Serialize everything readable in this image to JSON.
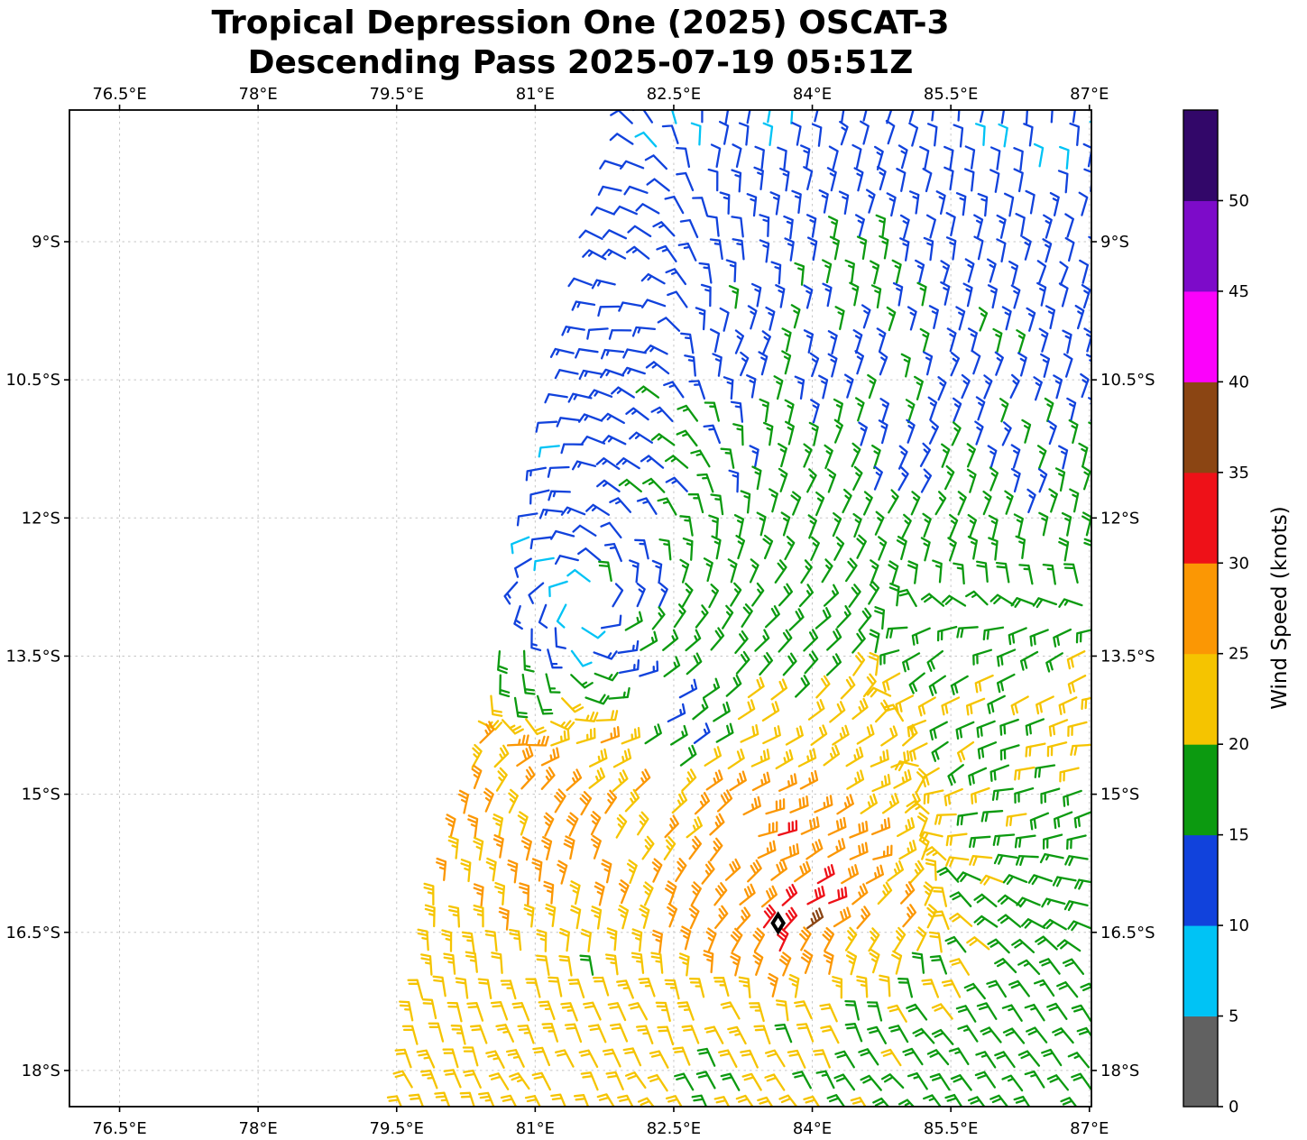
{
  "title": {
    "line1": "Tropical Depression One (2025) OSCAT-3",
    "line2": "Descending Pass 2025-07-19 05:51Z"
  },
  "axes": {
    "x": {
      "tick_values": [
        76.5,
        78,
        79.5,
        81,
        82.5,
        84,
        85.5,
        87
      ],
      "tick_labels": [
        "76.5°E",
        "78°E",
        "79.5°E",
        "81°E",
        "82.5°E",
        "84°E",
        "85.5°E",
        "87°E"
      ],
      "range_lon": [
        75.96,
        87.04
      ]
    },
    "y": {
      "tick_values": [
        9,
        10.5,
        12,
        13.5,
        15,
        16.5,
        18
      ],
      "tick_labels": [
        "9°S",
        "10.5°S",
        "12°S",
        "13.5°S",
        "15°S",
        "16.5°S",
        "18°S"
      ],
      "range_lat_south": [
        7.57,
        18.39
      ]
    }
  },
  "colorbar": {
    "label": "Wind Speed (knots)",
    "tick_values": [
      0,
      5,
      10,
      15,
      20,
      25,
      30,
      35,
      40,
      45,
      50
    ],
    "tick_labels": [
      "0",
      "5",
      "10",
      "15",
      "20",
      "25",
      "30",
      "35",
      "40",
      "45",
      "50"
    ],
    "levels": [
      0,
      5,
      10,
      15,
      20,
      25,
      30,
      35,
      40,
      45,
      50,
      55
    ],
    "colors": [
      "#616161",
      "#00c3f5",
      "#1142dc",
      "#0c9a10",
      "#f5c400",
      "#fb9704",
      "#ee1118",
      "#8b4513",
      "#fb02fb",
      "#7d0bc9",
      "#320769"
    ]
  },
  "chart_data": {
    "type": "wind_barbs",
    "units": "knots",
    "lat_convention": "degrees_south",
    "grid_spacing_deg": 0.25,
    "storm_marker": {
      "lon": 83.63,
      "lat": 16.4
    },
    "vortex_center": {
      "lon": 81.52,
      "lat": 12.93
    },
    "swath_right_boundary_lon": 87.12,
    "swath_left_boundary": [
      [
        7.6,
        82.05
      ],
      [
        9,
        81.7
      ],
      [
        10.5,
        81.33
      ],
      [
        12,
        80.95
      ],
      [
        13.5,
        80.58
      ],
      [
        15,
        80.2
      ],
      [
        16.5,
        79.83
      ],
      [
        17.6,
        79.65
      ],
      [
        18.45,
        79.5
      ]
    ],
    "holes": [
      [
        82.35,
        12.2,
        0.22
      ],
      [
        82.1,
        14.05,
        0.26
      ],
      [
        82.25,
        14.8,
        0.22
      ],
      [
        83.15,
        15.55,
        0.18
      ],
      [
        81.55,
        12.95,
        0.12
      ]
    ],
    "speed_samples": [
      [
        82.5,
        7.8,
        9
      ],
      [
        83.6,
        7.8,
        9
      ],
      [
        84.9,
        7.8,
        12
      ],
      [
        85.9,
        7.9,
        10
      ],
      [
        86.8,
        7.9,
        9
      ],
      [
        82.3,
        8.6,
        11
      ],
      [
        83.3,
        8.8,
        12
      ],
      [
        84.55,
        9.4,
        16
      ],
      [
        85.5,
        9.0,
        12
      ],
      [
        86.6,
        9.2,
        12
      ],
      [
        81.9,
        9.8,
        11
      ],
      [
        82.9,
        10.2,
        13
      ],
      [
        84.2,
        10.3,
        14
      ],
      [
        85.5,
        10.5,
        13
      ],
      [
        86.7,
        10.6,
        13
      ],
      [
        81.3,
        11.2,
        10
      ],
      [
        82.4,
        11.4,
        14
      ],
      [
        83.6,
        11.7,
        16
      ],
      [
        85.0,
        11.6,
        14
      ],
      [
        86.3,
        11.6,
        14
      ],
      [
        81.0,
        12.15,
        8
      ],
      [
        81.9,
        12.2,
        12
      ],
      [
        83.0,
        12.4,
        16
      ],
      [
        84.3,
        12.5,
        17
      ],
      [
        85.6,
        12.6,
        16
      ],
      [
        86.8,
        12.6,
        17
      ],
      [
        81.55,
        12.95,
        9
      ],
      [
        81.6,
        12.45,
        12
      ],
      [
        82.0,
        12.9,
        16
      ],
      [
        81.82,
        12.75,
        21
      ],
      [
        81.8,
        13.4,
        17
      ],
      [
        81.15,
        12.6,
        10
      ],
      [
        81.4,
        13.4,
        9
      ],
      [
        80.9,
        13.3,
        11
      ],
      [
        80.8,
        13.5,
        21
      ],
      [
        81.0,
        13.9,
        18
      ],
      [
        82.2,
        13.15,
        15
      ],
      [
        82.7,
        13.3,
        17
      ],
      [
        83.8,
        13.3,
        18
      ],
      [
        85.0,
        13.4,
        18
      ],
      [
        86.2,
        13.5,
        19
      ],
      [
        86.9,
        13.9,
        21
      ],
      [
        80.35,
        14.25,
        26
      ],
      [
        81.2,
        14.4,
        25
      ],
      [
        81.75,
        14.5,
        26
      ],
      [
        82.0,
        13.55,
        12
      ],
      [
        82.35,
        14.0,
        12
      ],
      [
        82.6,
        14.4,
        13
      ],
      [
        83.2,
        14.2,
        22
      ],
      [
        84.2,
        14.3,
        23
      ],
      [
        85.2,
        14.3,
        21
      ],
      [
        86.0,
        14.5,
        19
      ],
      [
        86.8,
        14.8,
        21
      ],
      [
        80.1,
        15.1,
        27
      ],
      [
        80.85,
        14.6,
        29
      ],
      [
        81.0,
        15.0,
        27
      ],
      [
        81.35,
        15.35,
        31
      ],
      [
        82.2,
        15.2,
        26
      ],
      [
        83.0,
        15.1,
        28
      ],
      [
        83.6,
        15.35,
        31
      ],
      [
        84.35,
        15.5,
        30
      ],
      [
        85.1,
        15.3,
        23
      ],
      [
        85.9,
        15.3,
        19
      ],
      [
        86.7,
        15.6,
        18
      ],
      [
        79.85,
        16.0,
        26
      ],
      [
        80.8,
        16.0,
        27
      ],
      [
        81.6,
        16.1,
        27
      ],
      [
        82.6,
        16.05,
        28
      ],
      [
        83.3,
        16.0,
        29
      ],
      [
        84.05,
        16.05,
        31
      ],
      [
        84.9,
        16.2,
        26
      ],
      [
        85.8,
        16.2,
        19
      ],
      [
        86.6,
        16.4,
        18
      ],
      [
        79.7,
        16.8,
        24
      ],
      [
        80.7,
        16.9,
        23
      ],
      [
        81.6,
        16.8,
        19
      ],
      [
        82.4,
        16.7,
        25
      ],
      [
        83.3,
        16.72,
        28
      ],
      [
        83.55,
        16.68,
        31
      ],
      [
        83.85,
        16.42,
        36
      ],
      [
        84.5,
        16.7,
        24
      ],
      [
        85.4,
        16.9,
        19
      ],
      [
        86.4,
        17.0,
        17
      ],
      [
        79.6,
        17.6,
        22
      ],
      [
        80.6,
        17.5,
        22
      ],
      [
        81.7,
        17.6,
        21
      ],
      [
        82.8,
        17.5,
        22
      ],
      [
        83.8,
        17.6,
        20
      ],
      [
        84.8,
        17.6,
        18
      ],
      [
        85.8,
        17.8,
        17
      ],
      [
        86.8,
        17.7,
        18
      ],
      [
        79.5,
        18.3,
        21
      ],
      [
        80.6,
        18.2,
        22
      ],
      [
        81.8,
        18.25,
        21
      ],
      [
        83.0,
        18.2,
        19
      ],
      [
        84.1,
        18.2,
        18
      ],
      [
        85.2,
        18.3,
        17
      ],
      [
        86.3,
        18.3,
        18
      ]
    ],
    "flow_samples": [
      [
        81.9,
        8.4,
        1.0,
        -0.25
      ],
      [
        83.2,
        8.0,
        -0.2,
        -1.0
      ],
      [
        84.6,
        8.2,
        -0.3,
        -0.95
      ],
      [
        86.0,
        8.3,
        -0.1,
        -1.0
      ],
      [
        86.9,
        9.5,
        -0.3,
        -0.95
      ],
      [
        82.0,
        10.0,
        1.0,
        0.1
      ],
      [
        83.2,
        10.2,
        -0.45,
        -0.9
      ],
      [
        84.6,
        10.4,
        -0.3,
        -1.0
      ],
      [
        85.8,
        10.8,
        -0.4,
        -0.9
      ],
      [
        81.2,
        11.5,
        0.75,
        0.65
      ],
      [
        82.4,
        11.5,
        0.95,
        -0.3
      ],
      [
        83.8,
        11.8,
        -0.5,
        -0.85
      ],
      [
        85.2,
        11.8,
        -0.5,
        -0.85
      ],
      [
        86.6,
        12.0,
        -0.3,
        -0.95
      ],
      [
        80.95,
        13.0,
        0.2,
        1.0
      ],
      [
        80.95,
        13.7,
        0.45,
        0.9
      ],
      [
        83.9,
        13.2,
        -0.8,
        -0.6
      ],
      [
        85.3,
        13.6,
        0.7,
        0.55
      ],
      [
        86.6,
        13.6,
        0.8,
        0.6
      ],
      [
        80.3,
        14.6,
        -0.15,
        -0.99
      ],
      [
        81.3,
        14.6,
        -0.2,
        -0.98
      ],
      [
        82.4,
        14.6,
        -0.5,
        -0.87
      ],
      [
        83.4,
        14.6,
        -0.9,
        -0.4
      ],
      [
        84.6,
        14.8,
        -0.9,
        -0.35
      ],
      [
        85.6,
        14.6,
        0.75,
        0.55
      ],
      [
        80.2,
        15.6,
        -0.1,
        -1.0
      ],
      [
        81.4,
        15.6,
        -0.15,
        -0.99
      ],
      [
        82.6,
        15.4,
        -0.7,
        -0.7
      ],
      [
        83.6,
        15.4,
        -1.0,
        -0.15
      ],
      [
        84.6,
        15.7,
        -0.95,
        -0.25
      ],
      [
        85.8,
        15.4,
        0.9,
        0.2
      ],
      [
        86.8,
        15.2,
        0.85,
        0.4
      ],
      [
        80.1,
        16.4,
        0.0,
        -1.0
      ],
      [
        81.2,
        16.4,
        -0.1,
        -1.0
      ],
      [
        82.3,
        16.3,
        -0.35,
        -0.94
      ],
      [
        83.2,
        16.35,
        -0.8,
        -0.6
      ],
      [
        84.1,
        16.3,
        -1.0,
        -0.2
      ],
      [
        84.9,
        16.5,
        -0.7,
        -0.7
      ],
      [
        85.9,
        16.6,
        0.7,
        -0.5
      ],
      [
        86.8,
        16.0,
        0.85,
        -0.2
      ],
      [
        83.6,
        16.9,
        -0.5,
        -0.87
      ],
      [
        84.3,
        17.0,
        -0.3,
        -0.95
      ],
      [
        79.8,
        17.3,
        0.2,
        -0.98
      ],
      [
        80.9,
        17.4,
        0.35,
        -0.94
      ],
      [
        82.0,
        17.4,
        0.5,
        -0.87
      ],
      [
        83.1,
        17.5,
        0.55,
        -0.84
      ],
      [
        84.2,
        17.5,
        0.6,
        -0.8
      ],
      [
        85.3,
        17.6,
        0.65,
        -0.76
      ],
      [
        86.5,
        17.5,
        0.6,
        -0.8
      ],
      [
        79.7,
        18.2,
        0.45,
        -0.89
      ],
      [
        81.0,
        18.2,
        0.55,
        -0.84
      ],
      [
        82.3,
        18.25,
        0.6,
        -0.8
      ],
      [
        83.6,
        18.25,
        0.65,
        -0.76
      ],
      [
        84.9,
        18.3,
        0.7,
        -0.71
      ],
      [
        86.2,
        18.3,
        0.6,
        -0.8
      ]
    ]
  }
}
